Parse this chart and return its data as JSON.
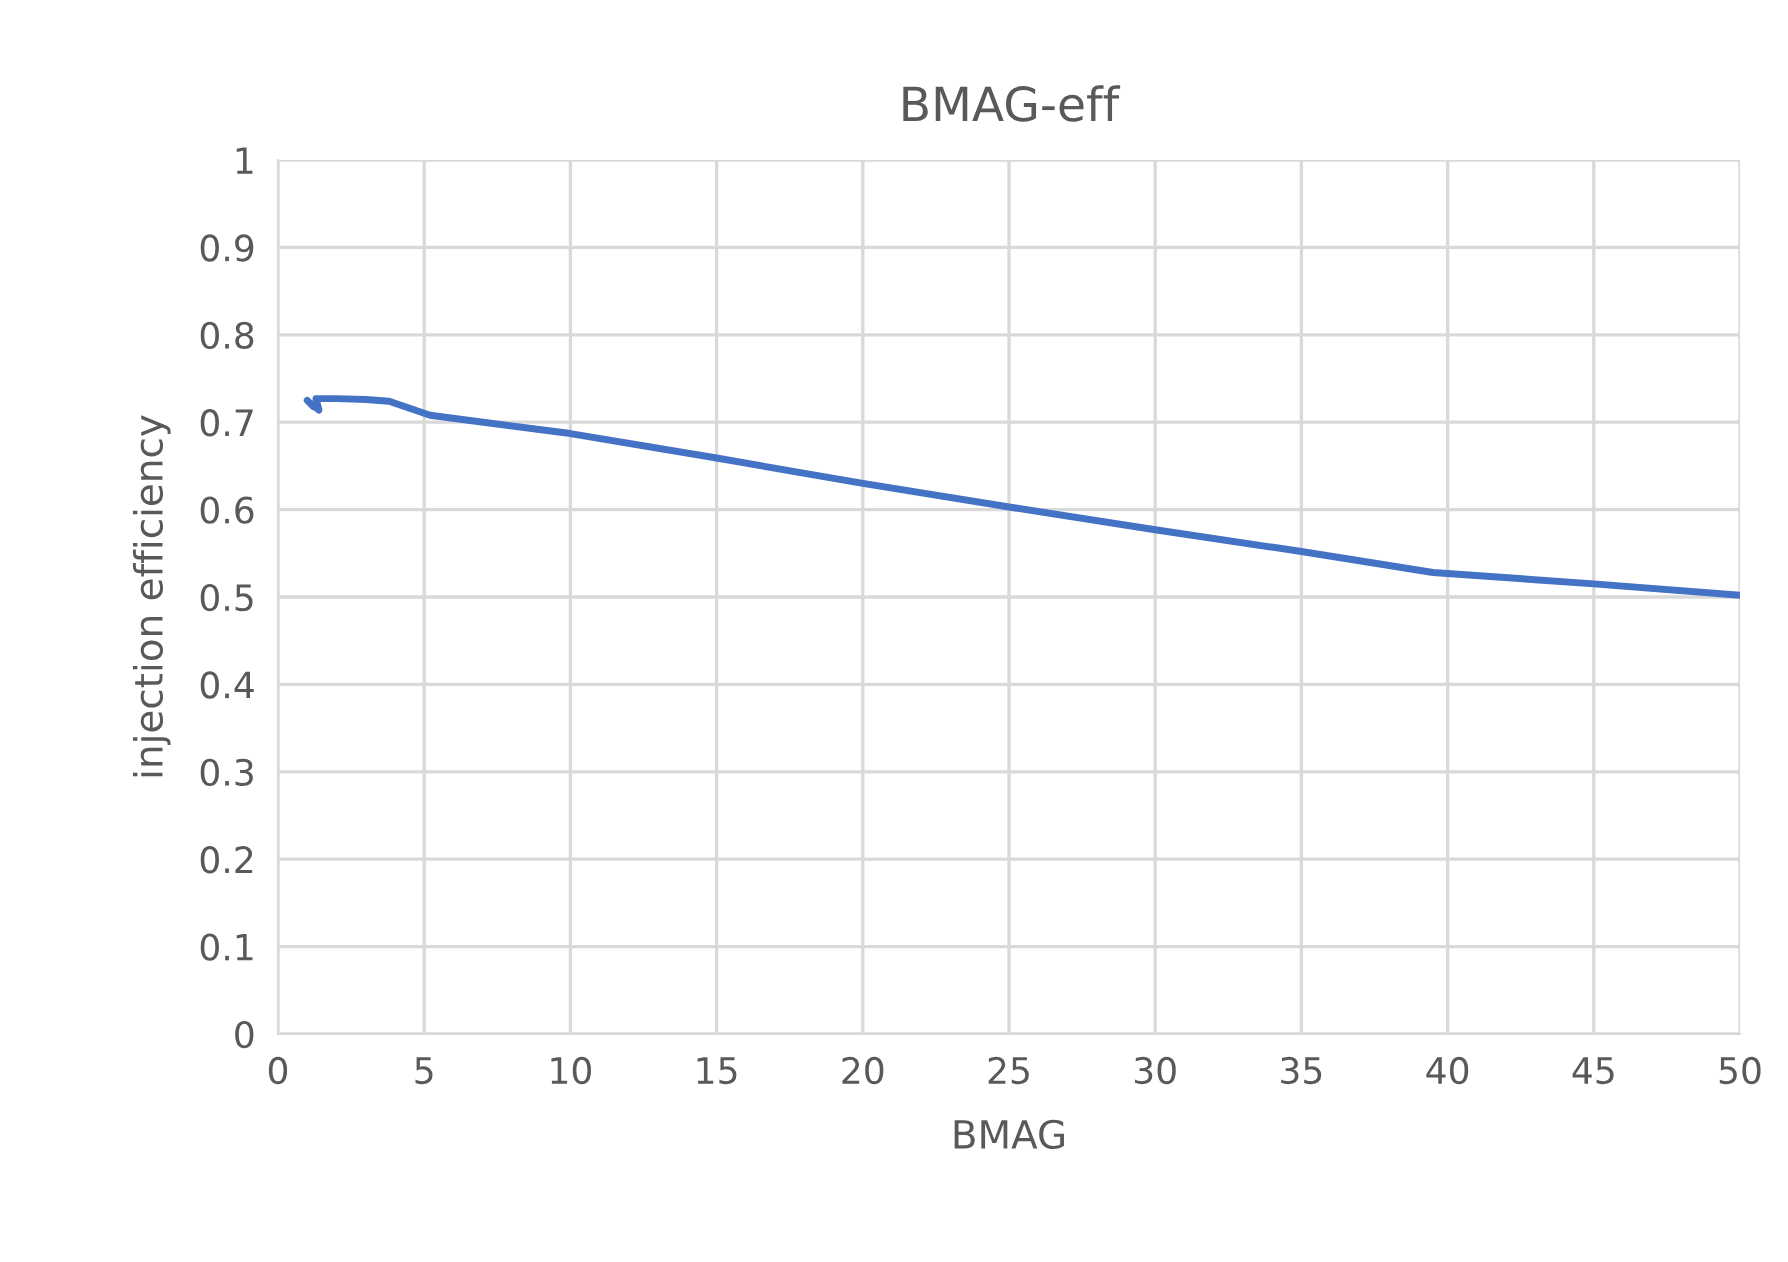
{
  "chart_data": {
    "type": "line",
    "title": "BMAG-eff",
    "xlabel": "BMAG",
    "ylabel": "injection efficiency",
    "x": [
      1.0,
      1.2,
      1.1,
      1.4,
      1.3,
      1.6,
      2.0,
      3.0,
      3.8,
      5.2,
      10,
      15,
      20,
      25,
      30,
      35,
      39.5,
      45,
      50
    ],
    "series": [
      {
        "color": "#4472c4",
        "values": [
          0.725,
          0.718,
          0.722,
          0.714,
          0.727,
          0.727,
          0.727,
          0.726,
          0.724,
          0.708,
          0.687,
          0.659,
          0.63,
          0.603,
          0.577,
          0.552,
          0.528,
          0.515,
          0.502
        ]
      }
    ],
    "xlim": [
      0,
      50
    ],
    "xticks": [
      0,
      5,
      10,
      15,
      20,
      25,
      30,
      35,
      40,
      45,
      50
    ],
    "ylim": [
      0,
      1
    ],
    "yticks": [
      0,
      0.1,
      0.2,
      0.3,
      0.4,
      0.5,
      0.6,
      0.7,
      0.8,
      0.9,
      1
    ],
    "grid": true,
    "marker": "none",
    "line_style": "solid",
    "legend": false
  }
}
